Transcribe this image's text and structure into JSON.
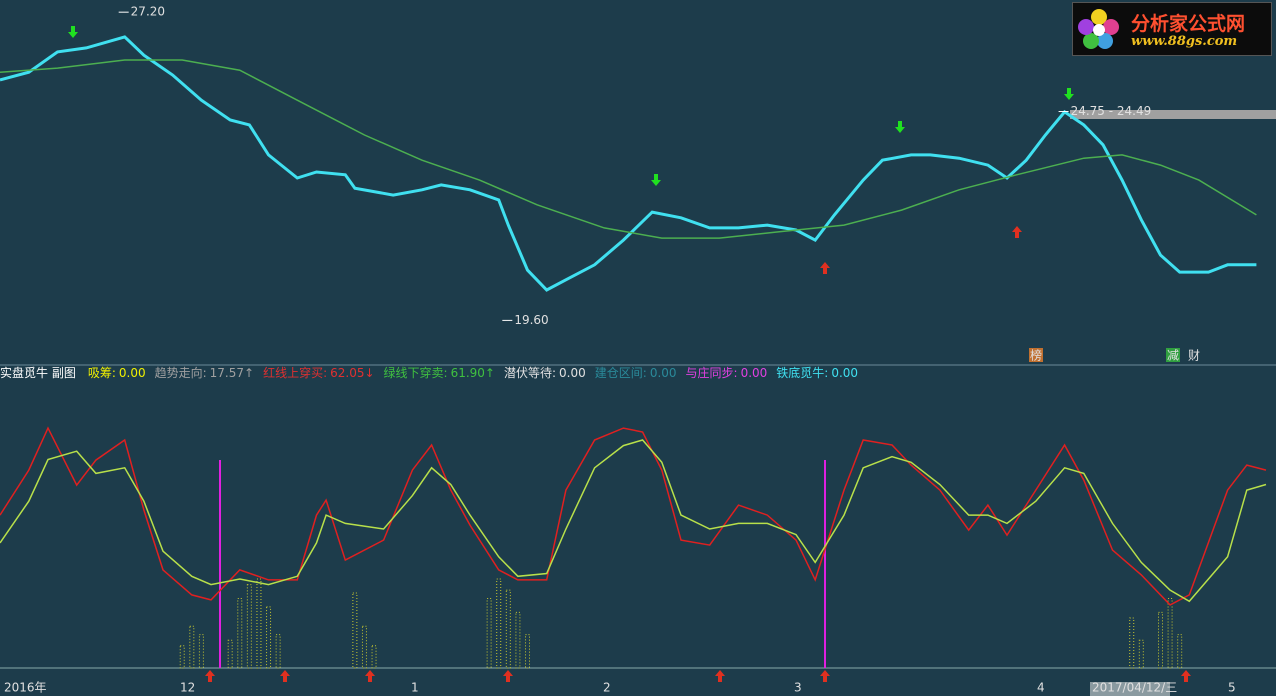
{
  "chart_data": [
    {
      "type": "line",
      "x": [
        0,
        3,
        6,
        9,
        13,
        15,
        18,
        21,
        24,
        26,
        28,
        31,
        33,
        36,
        37,
        41,
        44,
        46,
        49,
        52,
        53,
        55,
        57,
        59,
        62,
        65,
        68,
        71,
        74,
        77,
        80,
        83,
        85,
        87,
        90,
        92,
        95,
        97,
        100,
        103,
        105,
        107,
        109,
        111,
        113,
        115,
        117,
        119,
        121,
        123,
        126,
        128,
        131
      ],
      "xlim": [
        0,
        132
      ],
      "ylim": [
        18.5,
        27.5
      ],
      "series": [
        {
          "color": "#40e0f0",
          "x": [
            0,
            3,
            6,
            9,
            13,
            15,
            18,
            21,
            24,
            26,
            28,
            31,
            33,
            36,
            37,
            41,
            44,
            46,
            49,
            52,
            53,
            55,
            57,
            59,
            62,
            65,
            68,
            71,
            74,
            77,
            80,
            83,
            85,
            87,
            90,
            92,
            95,
            97,
            100,
            103,
            105,
            107,
            109,
            111,
            113,
            115,
            117,
            119,
            121,
            123,
            126,
            128,
            131
          ],
          "values": [
            25.53,
            25.72,
            26.22,
            26.32,
            26.59,
            26.14,
            25.65,
            25.03,
            24.54,
            24.42,
            23.68,
            23.11,
            23.26,
            23.19,
            22.86,
            22.69,
            22.82,
            22.94,
            22.82,
            22.57,
            21.95,
            20.84,
            20.35,
            20.6,
            20.97,
            21.58,
            22.27,
            22.13,
            21.88,
            21.88,
            21.95,
            21.83,
            21.58,
            22.2,
            23.06,
            23.55,
            23.68,
            23.68,
            23.6,
            23.43,
            23.11,
            23.55,
            24.17,
            24.74,
            24.42,
            23.93,
            23.06,
            22.08,
            21.21,
            20.79,
            20.79,
            20.97,
            20.97
          ]
        },
        {
          "color": "#4caf50",
          "x": [
            0,
            6,
            13,
            19,
            25,
            31,
            38,
            44,
            50,
            56,
            63,
            69,
            75,
            81,
            88,
            94,
            100,
            106,
            113,
            117,
            121,
            125,
            131
          ],
          "values": [
            25.72,
            25.82,
            26.02,
            26.02,
            25.77,
            25.03,
            24.17,
            23.55,
            23.06,
            22.45,
            21.88,
            21.63,
            21.63,
            21.78,
            21.95,
            22.32,
            22.82,
            23.19,
            23.6,
            23.68,
            23.43,
            23.06,
            22.2
          ]
        }
      ],
      "annotations": [
        {
          "x": 13,
          "value": 27.2,
          "label": "27.20"
        },
        {
          "x": 53,
          "value": 19.6,
          "label": "19.60"
        },
        {
          "x": 111,
          "value": 24.75,
          "label": "24.75 - 24.49"
        }
      ],
      "markers": [
        "榜",
        "减",
        "财"
      ]
    },
    {
      "type": "line",
      "xlim": [
        0,
        132
      ],
      "ylim": [
        0,
        100
      ],
      "series": [
        {
          "color": "#e02020",
          "x": [
            0,
            3,
            5,
            8,
            10,
            13,
            15,
            17,
            20,
            22,
            25,
            28,
            31,
            33,
            34,
            36,
            40,
            43,
            45,
            47,
            49,
            52,
            54,
            57,
            59,
            62,
            65,
            67,
            69,
            71,
            74,
            77,
            80,
            83,
            85,
            88,
            90,
            93,
            95,
            98,
            101,
            103,
            105,
            108,
            111,
            113,
            116,
            119,
            122,
            124,
            128,
            130,
            132
          ],
          "values": [
            55.0,
            71.2,
            86.3,
            65.8,
            74.8,
            82.0,
            56.8,
            35.3,
            26.3,
            24.5,
            35.3,
            31.7,
            31.7,
            55.0,
            60.4,
            38.8,
            46.0,
            71.2,
            80.2,
            64.0,
            51.4,
            35.3,
            31.7,
            31.7,
            64.0,
            82.0,
            86.3,
            84.9,
            71.2,
            46.0,
            44.2,
            58.6,
            55.0,
            46.0,
            31.7,
            64.0,
            82.0,
            80.2,
            73.0,
            64.0,
            49.6,
            58.6,
            47.8,
            64.0,
            80.2,
            67.6,
            42.4,
            33.5,
            22.7,
            26.3,
            64.0,
            73.0,
            71.2
          ]
        },
        {
          "color": "#b8e04a",
          "x": [
            0,
            3,
            5,
            8,
            10,
            13,
            15,
            17,
            20,
            22,
            25,
            28,
            31,
            33,
            34,
            36,
            40,
            43,
            45,
            47,
            49,
            52,
            54,
            57,
            59,
            62,
            65,
            67,
            69,
            71,
            74,
            77,
            80,
            83,
            85,
            88,
            90,
            93,
            95,
            98,
            101,
            103,
            105,
            108,
            111,
            113,
            116,
            119,
            122,
            124,
            128,
            130,
            132
          ],
          "values": [
            45,
            60,
            75,
            78,
            70,
            72,
            60,
            42,
            33,
            30,
            32,
            30,
            33,
            45,
            55,
            52,
            50,
            62,
            72,
            66,
            55,
            40,
            33,
            34,
            50,
            72,
            80,
            82,
            74,
            55,
            50,
            52,
            52,
            48,
            38,
            55,
            72,
            76,
            74,
            66,
            55,
            55,
            52,
            60,
            72,
            70,
            52,
            38,
            28,
            24,
            40,
            64,
            66
          ]
        }
      ],
      "bars": {
        "color": "#c8c830",
        "x": [
          19,
          20,
          21,
          24,
          25,
          26,
          27,
          28,
          29,
          37,
          38,
          39,
          51,
          52,
          53,
          54,
          55,
          118,
          119,
          121,
          122,
          123
        ],
        "values": [
          8,
          15,
          12,
          10,
          25,
          30,
          32,
          22,
          12,
          27,
          15,
          8,
          25,
          32,
          28,
          20,
          12,
          18,
          10,
          20,
          25,
          12
        ]
      }
    }
  ],
  "indicator_bar": [
    {
      "name": "实盘觅牛 副图",
      "color": "#ffffff"
    },
    {
      "name": "吸筹:",
      "value": "0.00",
      "color": "#f0f000"
    },
    {
      "name": "趋势走向:",
      "value": "17.57↑",
      "color": "#a0a0a0"
    },
    {
      "name": "红线上穿买:",
      "value": "62.05↓",
      "color": "#e03030"
    },
    {
      "name": "绿线下穿卖:",
      "value": "61.90↑",
      "color": "#40c040"
    },
    {
      "name": "潜伏等待:",
      "value": "0.00",
      "color": "#e0e0e0"
    },
    {
      "name": "建仓区间:",
      "value": "0.00",
      "color": "#2a8a9a"
    },
    {
      "name": "与庄同步:",
      "value": "0.00",
      "color": "#e040e0"
    },
    {
      "name": "铁底觅牛:",
      "value": "0.00",
      "color": "#40e0f0"
    }
  ],
  "time_axis": [
    "2016年",
    "12",
    "1",
    "2",
    "3",
    "4",
    "2017/04/12/三",
    "5"
  ],
  "logo": {
    "title": "分析家公式网",
    "url": "www.88gs.com"
  }
}
